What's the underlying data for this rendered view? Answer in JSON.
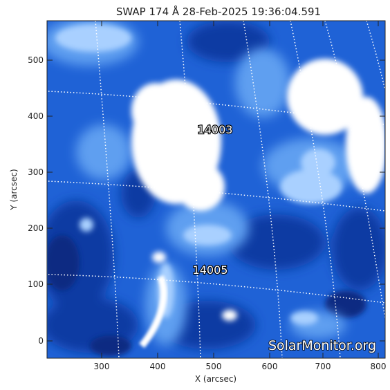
{
  "title": "SWAP 174 Å 28-Feb-2025 19:36:04.591",
  "x_axis": {
    "label": "X (arcsec)",
    "ticks": [
      "300",
      "400",
      "500",
      "600",
      "700",
      "800"
    ],
    "range": [
      205,
      808
    ]
  },
  "y_axis": {
    "label": "Y (arcsec)",
    "ticks": [
      "0",
      "100",
      "200",
      "300",
      "400",
      "500"
    ],
    "range": [
      -30,
      568
    ]
  },
  "regions": [
    {
      "label": "14003"
    },
    {
      "label": "14005"
    }
  ],
  "watermark": "SolarMonitor.org",
  "colors": {
    "background": "#ffffff",
    "image_dark_blue": "#0b2f8a",
    "image_mid_blue": "#1e6fe0",
    "image_light_blue": "#8cc0ff",
    "grid": "#ffffff"
  }
}
